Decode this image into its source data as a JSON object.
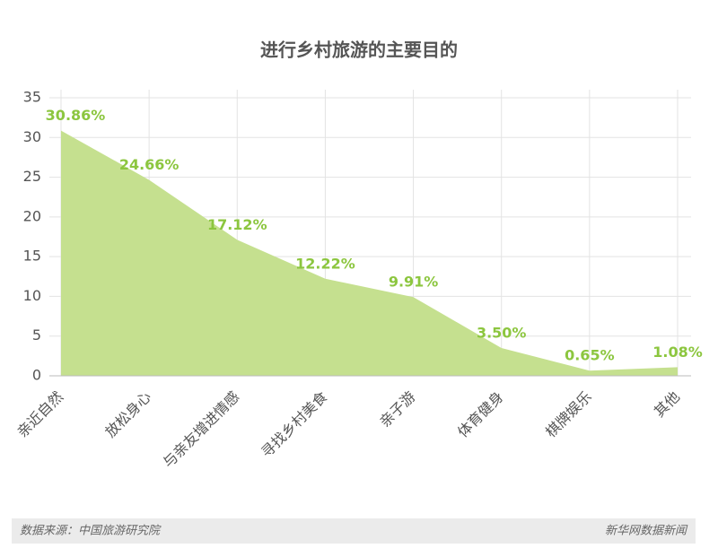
{
  "chart_data": {
    "type": "area",
    "title": "进行乡村旅游的主要目的",
    "categories": [
      "亲近自然",
      "放松身心",
      "与亲友增进情感",
      "寻找乡村美食",
      "亲子游",
      "体育健身",
      "棋牌娱乐",
      "其他"
    ],
    "values": [
      30.86,
      24.66,
      17.12,
      12.22,
      9.91,
      3.5,
      0.65,
      1.08
    ],
    "value_labels": [
      "30.86%",
      "24.66%",
      "17.12%",
      "12.22%",
      "9.91%",
      "3.50%",
      "0.65%",
      "1.08%"
    ],
    "color": "#c5e08f",
    "label_color": "#8cc63f",
    "ylim": [
      0,
      35
    ],
    "yticks": [
      0,
      5,
      10,
      15,
      20,
      25,
      30,
      35
    ],
    "grid": true,
    "source": "数据来源：中国旅游研究院",
    "credit": "新华网数据新闻"
  }
}
